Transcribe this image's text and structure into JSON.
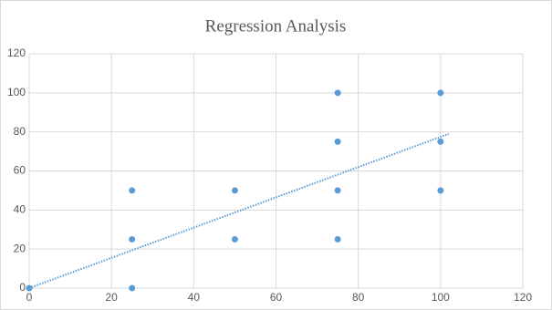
{
  "chart_data": {
    "type": "scatter",
    "title": "Regression Analysis",
    "series": [
      {
        "color": "#5b9bd5",
        "x": [
          0,
          25,
          25,
          25,
          50,
          50,
          75,
          75,
          75,
          75,
          100,
          100,
          100
        ],
        "values": [
          0,
          0,
          25,
          50,
          25,
          50,
          25,
          50,
          75,
          100,
          50,
          75,
          100
        ]
      }
    ],
    "trendline": {
      "color": "#5b9bd5",
      "x": [
        0,
        102
      ],
      "y": [
        0,
        79
      ]
    },
    "xlim": [
      0,
      120
    ],
    "xticks": [
      0,
      20,
      40,
      60,
      80,
      100,
      120
    ],
    "ylim": [
      0,
      120
    ],
    "yticks": [
      0,
      20,
      40,
      60,
      80,
      100,
      120
    ],
    "grid": true
  }
}
